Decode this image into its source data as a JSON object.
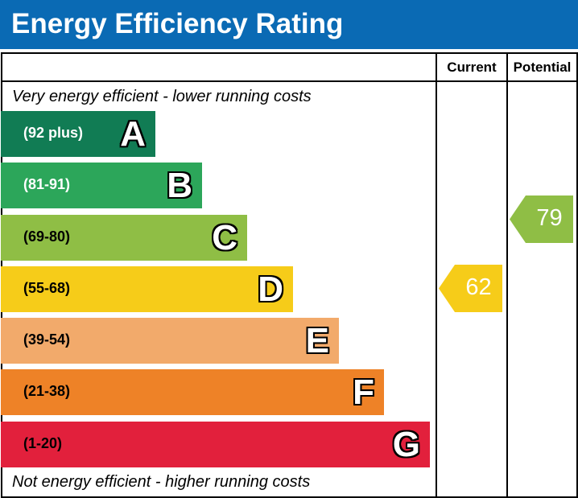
{
  "title": "Energy Efficiency Rating",
  "chart_data": {
    "type": "bar",
    "columns": [
      "Current",
      "Potential"
    ],
    "top_note": "Very energy efficient - lower running costs",
    "bottom_note": "Not energy efficient - higher running costs",
    "bands": [
      {
        "letter": "A",
        "range": "(92 plus)",
        "color": "#117c54"
      },
      {
        "letter": "B",
        "range": "(81-91)",
        "color": "#2ca65a"
      },
      {
        "letter": "C",
        "range": "(69-80)",
        "color": "#8fbe45"
      },
      {
        "letter": "D",
        "range": "(55-68)",
        "color": "#f6cc19"
      },
      {
        "letter": "E",
        "range": "(39-54)",
        "color": "#f2aa6b"
      },
      {
        "letter": "F",
        "range": "(21-38)",
        "color": "#ee8227"
      },
      {
        "letter": "G",
        "range": "(1-20)",
        "color": "#e2203c"
      }
    ],
    "current": {
      "value": "62",
      "band": "D",
      "color": "#f6cc19"
    },
    "potential": {
      "value": "79",
      "band": "C",
      "color": "#8fbe45"
    }
  }
}
